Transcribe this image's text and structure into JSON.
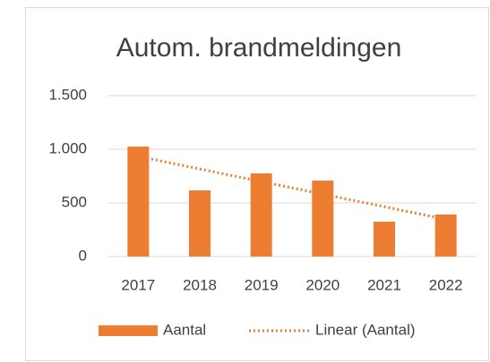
{
  "chart_data": {
    "type": "bar",
    "title": "Autom. brandmeldingen",
    "categories": [
      "2017",
      "2018",
      "2019",
      "2020",
      "2021",
      "2022"
    ],
    "series": [
      {
        "name": "Aantal",
        "color": "#ed7d31",
        "values": [
          1025,
          617,
          775,
          708,
          325,
          392
        ]
      }
    ],
    "trendline": {
      "name": "Linear (Aantal)",
      "kind": "linear",
      "color": "#ed7d31"
    },
    "ylim": [
      0,
      1500
    ],
    "yticks": [
      0,
      500,
      {
        "value": 1000,
        "label": "1.000"
      },
      {
        "value": 1500,
        "label": "1.500"
      }
    ],
    "grid": true,
    "legend": "bottom"
  }
}
